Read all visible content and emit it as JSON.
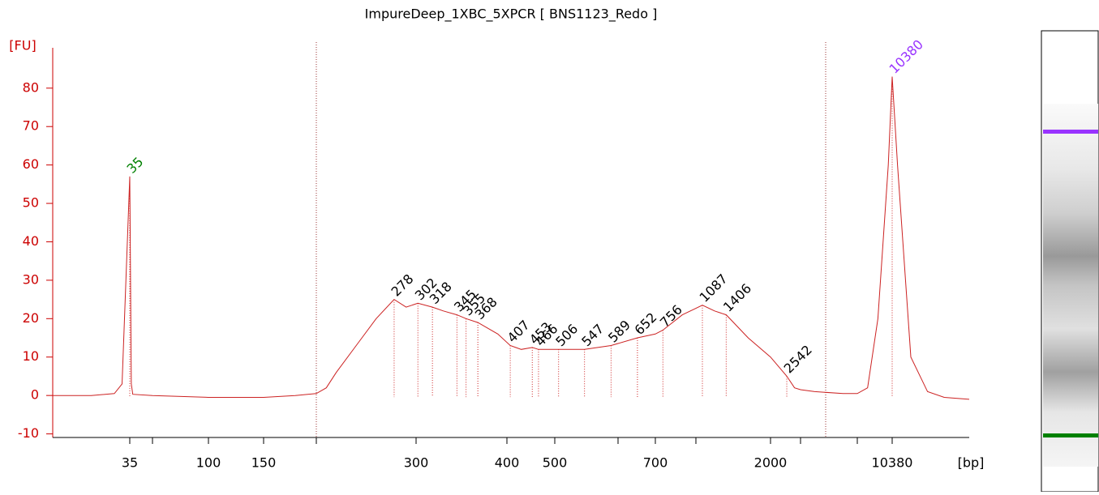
{
  "chart_data": {
    "type": "line",
    "title": "ImpureDeep_1XBC_5XPCR  [ BNS1123_Redo ]",
    "y_label": "[FU]",
    "x_label": "[bp]",
    "ylim": [
      -10.3,
      90.5
    ],
    "yticks": [
      -10,
      0,
      10,
      20,
      30,
      40,
      50,
      60,
      70,
      80
    ],
    "xlim": [
      25,
      15000
    ],
    "xticks": [
      35,
      {
        "value": 50,
        "label": null
      },
      100,
      150,
      {
        "value": 200,
        "label": null
      },
      300,
      400,
      500,
      {
        "value": 600,
        "label": null
      },
      700,
      {
        "value": 1000,
        "label": null
      },
      2000,
      {
        "value": 3000,
        "label": null
      },
      {
        "value": 7000,
        "label": null
      },
      10380
    ],
    "series": [
      {
        "color": "#cc2222",
        "x": [
          25,
          30,
          33,
          34,
          35,
          36,
          37,
          50,
          100,
          150,
          180,
          200,
          210,
          220,
          240,
          260,
          278,
          290,
          302,
          318,
          330,
          345,
          355,
          368,
          390,
          407,
          430,
          453,
          466,
          506,
          547,
          589,
          652,
          700,
          756,
          900,
          1087,
          1250,
          1406,
          1700,
          2000,
          2542,
          2800,
          3000,
          4000,
          6000,
          7000,
          8000,
          9000,
          10000,
          10380,
          10700,
          11500,
          12500,
          13500,
          15000
        ],
        "values": [
          0,
          0,
          0.5,
          3,
          57,
          3,
          0.3,
          0,
          -0.5,
          -0.5,
          0,
          0.5,
          2,
          6,
          13,
          20,
          25,
          23,
          24,
          23,
          22,
          21,
          20,
          19,
          16,
          13,
          12,
          12.5,
          12,
          12,
          12,
          13,
          15,
          16,
          17,
          21,
          23.5,
          22,
          21,
          15,
          10,
          5,
          2,
          1.5,
          1,
          0.5,
          0.5,
          2,
          20,
          60,
          83,
          60,
          10,
          1,
          -0.5,
          -1
        ]
      }
    ],
    "peaks": {
      "x": [
        35,
        278,
        302,
        318,
        345,
        355,
        368,
        407,
        453,
        466,
        506,
        547,
        589,
        652,
        756,
        1087,
        1406,
        2542,
        10380
      ],
      "y": [
        57,
        25,
        24,
        23,
        21,
        20,
        19,
        13,
        12.5,
        12,
        12,
        12,
        13,
        15,
        17,
        23.5,
        21,
        5,
        83
      ],
      "colors": [
        "#008000",
        "#000000",
        "#000000",
        "#000000",
        "#000000",
        "#000000",
        "#000000",
        "#000000",
        "#000000",
        "#000000",
        "#000000",
        "#000000",
        "#000000",
        "#000000",
        "#000000",
        "#000000",
        "#000000",
        "#000000",
        "#9933ff"
      ]
    }
  }
}
